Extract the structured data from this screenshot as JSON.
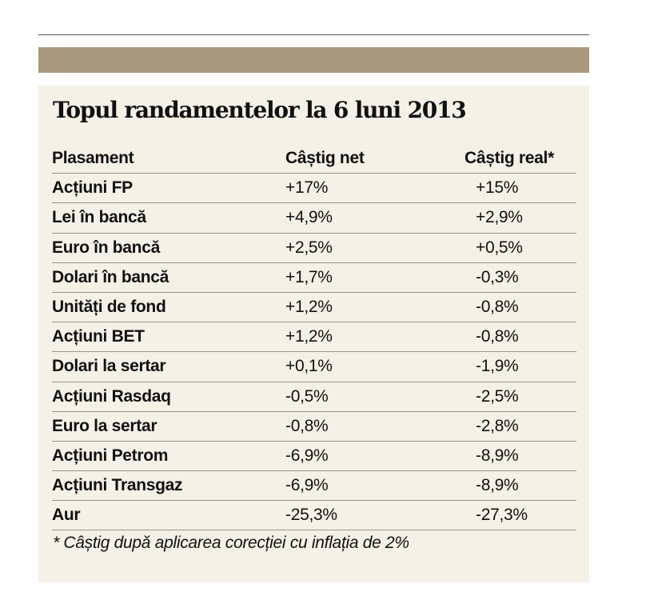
{
  "title": "Topul randamentelor la 6 luni 2013",
  "columns": [
    "Plasament",
    "Câștig net",
    "Câștig real*"
  ],
  "rows": [
    [
      "Acțiuni FP",
      "+17%",
      "+15%"
    ],
    [
      "Lei în bancă",
      "+4,9%",
      "+2,9%"
    ],
    [
      "Euro în bancă",
      "+2,5%",
      "+0,5%"
    ],
    [
      "Dolari în bancă",
      "+1,7%",
      "-0,3%"
    ],
    [
      "Unități de fond",
      "+1,2%",
      "-0,8%"
    ],
    [
      "Acțiuni BET",
      "+1,2%",
      "-0,8%"
    ],
    [
      "Dolari la sertar",
      "+0,1%",
      "-1,9%"
    ],
    [
      "Acțiuni Rasdaq",
      "-0,5%",
      "-2,5%"
    ],
    [
      "Euro la sertar",
      "-0,8%",
      "-2,8%"
    ],
    [
      "Acțiuni Petrom",
      "-6,9%",
      "-8,9%"
    ],
    [
      "Acțiuni Transgaz",
      "-6,9%",
      "-8,9%"
    ],
    [
      "Aur",
      "-25,3%",
      "-27,3%"
    ]
  ],
  "footnote": "* Câștig după aplicarea corecției cu inflația de 2%",
  "colors": {
    "band": "#a89a7e",
    "panel": "#f4f1e6",
    "rule": "#9a9588"
  }
}
